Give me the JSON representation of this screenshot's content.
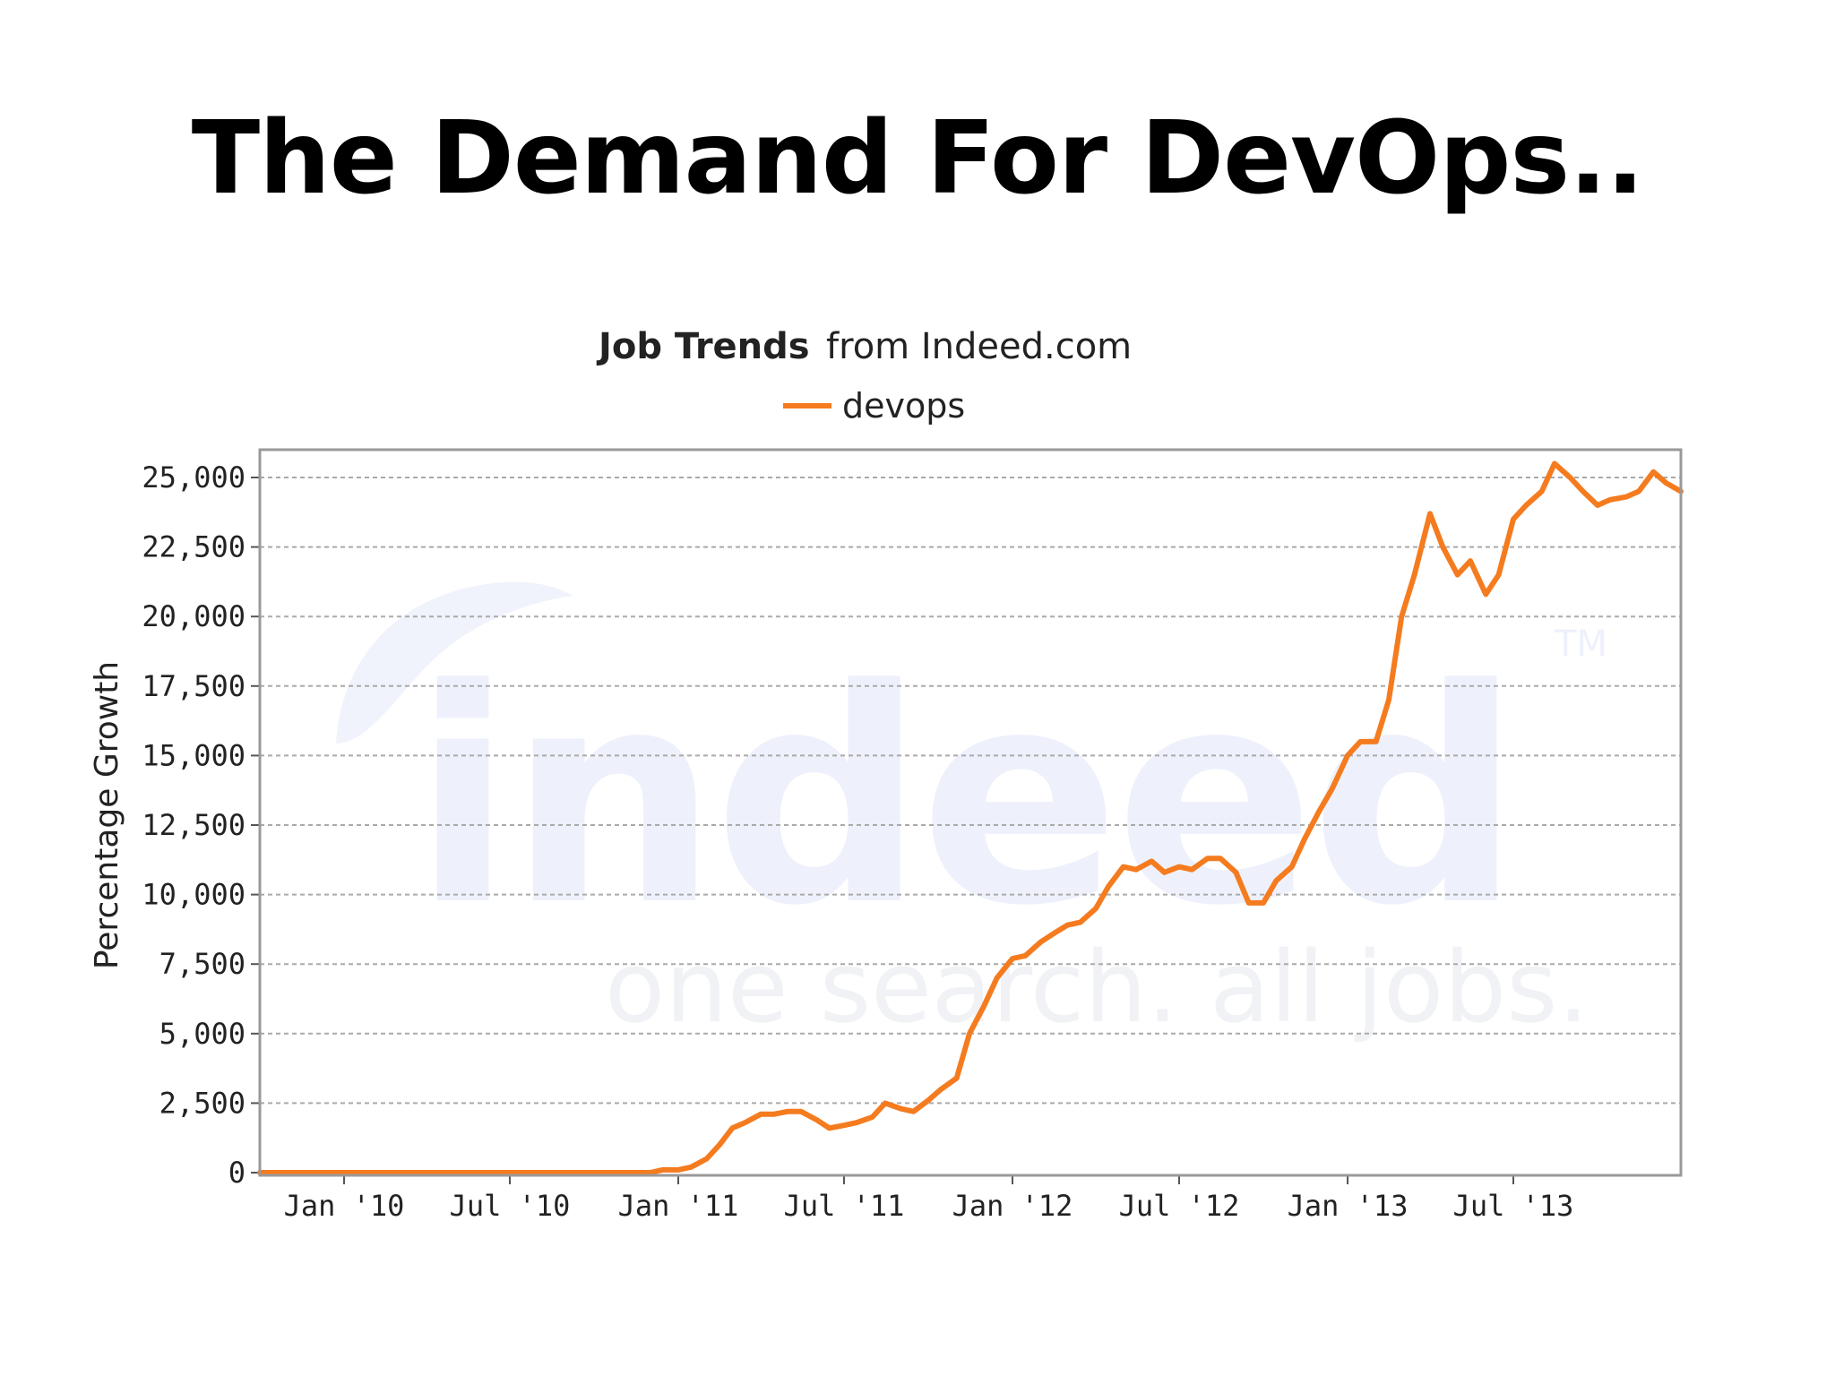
{
  "slide": {
    "title": "The Demand For DevOps.."
  },
  "watermark": {
    "logo": "indeed",
    "tagline": "one search. all jobs.",
    "trademark": "TM"
  },
  "chart_data": {
    "type": "line",
    "title_bold": "Job Trends",
    "title_rest": "from Indeed.com",
    "ylabel": "Percentage Growth",
    "xlabel": "",
    "ylim": [
      0,
      26000
    ],
    "yticks": [
      0,
      2500,
      5000,
      7500,
      10000,
      12500,
      15000,
      17500,
      20000,
      22500,
      25000
    ],
    "ytick_labels": [
      "0",
      "2,500",
      "5,000",
      "7,500",
      "10,000",
      "12,500",
      "15,000",
      "17,500",
      "20,000",
      "22,500",
      "25,000"
    ],
    "xlim": [
      "2009-10-01",
      "2013-12-31"
    ],
    "xticks": [
      "2010-01-01",
      "2010-07-01",
      "2011-01-01",
      "2011-07-01",
      "2012-01-01",
      "2012-07-01",
      "2013-01-01",
      "2013-07-01"
    ],
    "xtick_labels": [
      "Jan '10",
      "Jul '10",
      "Jan '11",
      "Jul '11",
      "Jan '12",
      "Jul '12",
      "Jan '13",
      "Jul '13"
    ],
    "grid": true,
    "legend_position": "top-center",
    "colors": {
      "series": "#f57b1f",
      "grid": "#aaaaaa",
      "frame": "#999999"
    },
    "series": [
      {
        "name": "devops",
        "x": [
          "2009-10-01",
          "2009-11-15",
          "2010-06-01",
          "2010-12-01",
          "2010-12-15",
          "2011-01-01",
          "2011-01-15",
          "2011-02-01",
          "2011-02-15",
          "2011-03-01",
          "2011-03-15",
          "2011-04-01",
          "2011-04-15",
          "2011-05-01",
          "2011-05-15",
          "2011-06-01",
          "2011-06-15",
          "2011-07-01",
          "2011-07-15",
          "2011-08-01",
          "2011-08-15",
          "2011-09-01",
          "2011-09-15",
          "2011-10-01",
          "2011-10-15",
          "2011-11-01",
          "2011-11-15",
          "2011-12-01",
          "2011-12-15",
          "2012-01-01",
          "2012-01-15",
          "2012-02-01",
          "2012-02-15",
          "2012-03-01",
          "2012-03-15",
          "2012-04-01",
          "2012-04-15",
          "2012-05-01",
          "2012-05-15",
          "2012-06-01",
          "2012-06-15",
          "2012-07-01",
          "2012-07-15",
          "2012-08-01",
          "2012-08-15",
          "2012-09-01",
          "2012-09-15",
          "2012-10-01",
          "2012-10-15",
          "2012-11-01",
          "2012-11-15",
          "2012-12-01",
          "2012-12-15",
          "2013-01-01",
          "2013-01-15",
          "2013-02-01",
          "2013-02-15",
          "2013-03-01",
          "2013-03-15",
          "2013-04-01",
          "2013-04-15",
          "2013-05-01",
          "2013-05-15",
          "2013-06-01",
          "2013-06-15",
          "2013-07-01",
          "2013-07-15",
          "2013-08-01",
          "2013-08-15",
          "2013-09-01",
          "2013-09-15",
          "2013-10-01",
          "2013-10-15",
          "2013-11-01",
          "2013-11-15",
          "2013-12-01",
          "2013-12-15",
          "2013-12-31"
        ],
        "y": [
          0,
          0,
          0,
          0,
          100,
          100,
          200,
          500,
          1000,
          1600,
          1800,
          2100,
          2100,
          2200,
          2200,
          1900,
          1600,
          1700,
          1800,
          2000,
          2500,
          2300,
          2200,
          2600,
          3000,
          3400,
          5000,
          6000,
          7000,
          7700,
          7800,
          8300,
          8600,
          8900,
          9000,
          9500,
          10300,
          11000,
          10900,
          11200,
          10800,
          11000,
          10900,
          11300,
          11300,
          10800,
          9700,
          9700,
          10500,
          11000,
          12000,
          13000,
          13800,
          15000,
          15500,
          15500,
          17000,
          20000,
          21500,
          23700,
          22500,
          21500,
          22000,
          20800,
          21500,
          23500,
          24000,
          24500,
          25500,
          25000,
          24500,
          24000,
          24200,
          24300,
          24500,
          25200,
          24800,
          24500
        ]
      }
    ]
  }
}
